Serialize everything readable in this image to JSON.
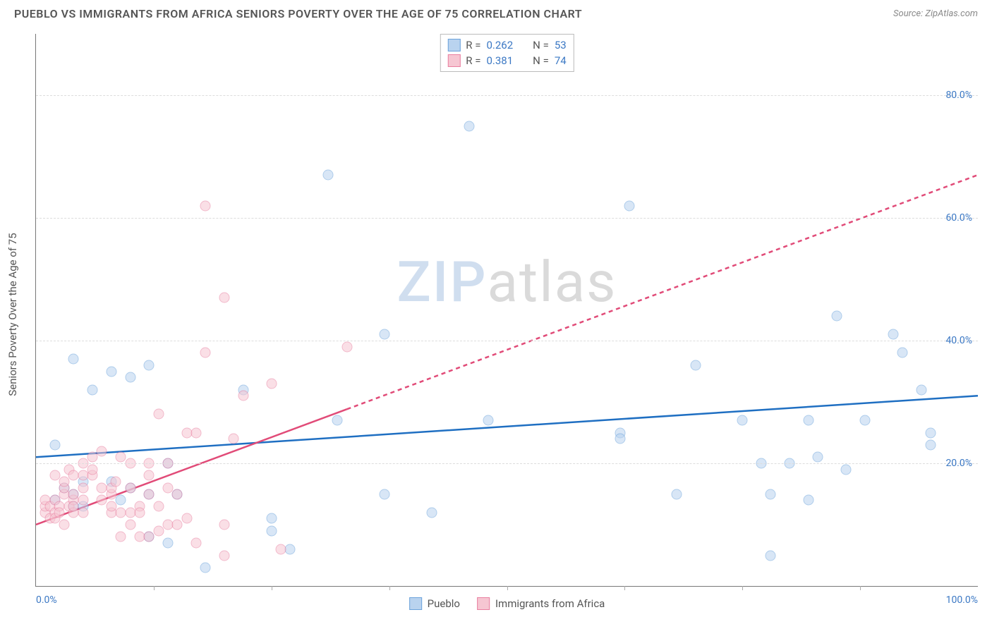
{
  "title": "PUEBLO VS IMMIGRANTS FROM AFRICA SENIORS POVERTY OVER THE AGE OF 75 CORRELATION CHART",
  "source": "Source: ZipAtlas.com",
  "ylabel": "Seniors Poverty Over the Age of 75",
  "watermark_a": "ZIP",
  "watermark_b": "atlas",
  "chart": {
    "type": "scatter",
    "xlim": [
      0,
      100
    ],
    "ylim": [
      0,
      90
    ],
    "ytick_values": [
      20,
      40,
      60,
      80
    ],
    "ytick_labels": [
      "20.0%",
      "40.0%",
      "60.0%",
      "80.0%"
    ],
    "xtick_minor": [
      12.5,
      25,
      37.5,
      50,
      62.5,
      75,
      87.5
    ],
    "xtick_left": "0.0%",
    "xtick_right": "100.0%",
    "background_color": "#ffffff",
    "grid_color": "#dddddd",
    "marker_size": 15,
    "marker_opacity": 0.55,
    "marker_border_width": 1.5
  },
  "series": [
    {
      "name": "Pueblo",
      "fill": "#b9d3ef",
      "stroke": "#6ca3db",
      "trend_color": "#1f6fc2",
      "trend_width": 2.5,
      "trend_dash_after_x": 100,
      "R_label": "R =",
      "R_value": "0.262",
      "N_label": "N =",
      "N_value": "53",
      "trend": {
        "x1": 0,
        "y1": 21,
        "x2": 100,
        "y2": 31
      },
      "points": [
        [
          2,
          23
        ],
        [
          2,
          14
        ],
        [
          3,
          16
        ],
        [
          4,
          37
        ],
        [
          4,
          15
        ],
        [
          4,
          13
        ],
        [
          5,
          13
        ],
        [
          5,
          17
        ],
        [
          6,
          32
        ],
        [
          8,
          35
        ],
        [
          8,
          17
        ],
        [
          9,
          14
        ],
        [
          10,
          16
        ],
        [
          10,
          34
        ],
        [
          12,
          36
        ],
        [
          12,
          15
        ],
        [
          12,
          8
        ],
        [
          14,
          20
        ],
        [
          14,
          7
        ],
        [
          15,
          15
        ],
        [
          18,
          3
        ],
        [
          22,
          32
        ],
        [
          25,
          11
        ],
        [
          25,
          9
        ],
        [
          27,
          6
        ],
        [
          31,
          67
        ],
        [
          32,
          27
        ],
        [
          37,
          41
        ],
        [
          37,
          15
        ],
        [
          42,
          12
        ],
        [
          46,
          75
        ],
        [
          48,
          27
        ],
        [
          62,
          25
        ],
        [
          62,
          24
        ],
        [
          63,
          62
        ],
        [
          68,
          15
        ],
        [
          70,
          36
        ],
        [
          75,
          27
        ],
        [
          77,
          20
        ],
        [
          78,
          5
        ],
        [
          78,
          15
        ],
        [
          80,
          20
        ],
        [
          82,
          14
        ],
        [
          82,
          27
        ],
        [
          83,
          21
        ],
        [
          85,
          44
        ],
        [
          86,
          19
        ],
        [
          88,
          27
        ],
        [
          91,
          41
        ],
        [
          92,
          38
        ],
        [
          94,
          32
        ],
        [
          95,
          25
        ],
        [
          95,
          23
        ]
      ]
    },
    {
      "name": "Immigrants from Africa",
      "fill": "#f6c6d2",
      "stroke": "#e97fa0",
      "trend_color": "#e14b78",
      "trend_width": 2.5,
      "trend_dash_after_x": 33,
      "R_label": "R =",
      "R_value": "0.381",
      "N_label": "N =",
      "N_value": "74",
      "trend": {
        "x1": 0,
        "y1": 10,
        "x2": 100,
        "y2": 67
      },
      "points": [
        [
          1,
          12
        ],
        [
          1,
          13
        ],
        [
          1,
          14
        ],
        [
          1.5,
          11
        ],
        [
          1.5,
          13
        ],
        [
          2,
          12
        ],
        [
          2,
          14
        ],
        [
          2,
          11
        ],
        [
          2,
          18
        ],
        [
          2.5,
          13
        ],
        [
          2.5,
          12
        ],
        [
          3,
          15
        ],
        [
          3,
          10
        ],
        [
          3,
          16
        ],
        [
          3,
          17
        ],
        [
          3.5,
          13
        ],
        [
          3.5,
          19
        ],
        [
          4,
          14
        ],
        [
          4,
          15
        ],
        [
          4,
          12
        ],
        [
          4,
          18
        ],
        [
          4,
          13
        ],
        [
          5,
          18
        ],
        [
          5,
          12
        ],
        [
          5,
          14
        ],
        [
          5,
          16
        ],
        [
          5,
          20
        ],
        [
          6,
          18
        ],
        [
          6,
          21
        ],
        [
          6,
          19
        ],
        [
          7,
          14
        ],
        [
          7,
          16
        ],
        [
          7,
          22
        ],
        [
          8,
          12
        ],
        [
          8,
          15
        ],
        [
          8,
          16
        ],
        [
          8,
          13
        ],
        [
          8.5,
          17
        ],
        [
          9,
          12
        ],
        [
          9,
          21
        ],
        [
          9,
          8
        ],
        [
          10,
          10
        ],
        [
          10,
          12
        ],
        [
          10,
          16
        ],
        [
          10,
          20
        ],
        [
          11,
          8
        ],
        [
          11,
          13
        ],
        [
          11,
          12
        ],
        [
          12,
          8
        ],
        [
          12,
          20
        ],
        [
          12,
          18
        ],
        [
          12,
          15
        ],
        [
          13,
          28
        ],
        [
          13,
          9
        ],
        [
          13,
          13
        ],
        [
          14,
          16
        ],
        [
          14,
          10
        ],
        [
          14,
          20
        ],
        [
          15,
          10
        ],
        [
          15,
          15
        ],
        [
          16,
          11
        ],
        [
          16,
          25
        ],
        [
          17,
          7
        ],
        [
          17,
          25
        ],
        [
          18,
          62
        ],
        [
          18,
          38
        ],
        [
          20,
          47
        ],
        [
          20,
          10
        ],
        [
          20,
          5
        ],
        [
          21,
          24
        ],
        [
          22,
          31
        ],
        [
          25,
          33
        ],
        [
          26,
          6
        ],
        [
          33,
          39
        ]
      ]
    }
  ],
  "legend_bottom": [
    {
      "label": "Pueblo",
      "series": 0
    },
    {
      "label": "Immigrants from Africa",
      "series": 1
    }
  ]
}
